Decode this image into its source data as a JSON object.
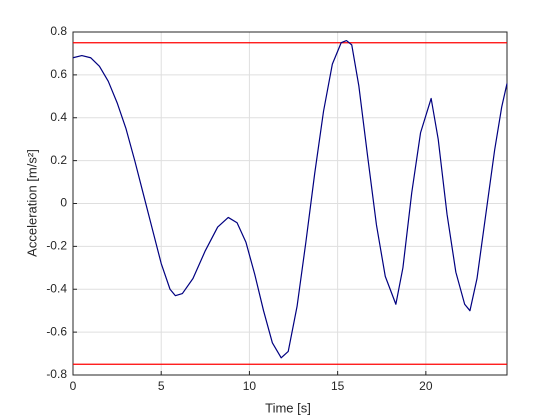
{
  "chart_data": {
    "type": "line",
    "xlabel": "Time [s]",
    "ylabel": "Acceleration [m/s²]",
    "x": [
      0,
      0.5,
      1,
      1.5,
      2,
      2.5,
      3,
      3.5,
      4,
      4.5,
      5,
      5.5,
      5.8,
      6.2,
      6.8,
      7.5,
      8.2,
      8.8,
      9.3,
      9.8,
      10.3,
      10.8,
      11.3,
      11.8,
      12.2,
      12.7,
      13.2,
      13.7,
      14.2,
      14.7,
      15.2,
      15.5,
      15.8,
      16.2,
      16.7,
      17.2,
      17.7,
      18.3,
      18.7,
      19.2,
      19.7,
      20.3,
      20.7,
      21.2,
      21.7,
      22.2,
      22.5,
      22.9,
      23.4,
      23.9,
      24.3,
      24.6
    ],
    "series": [
      {
        "color": "#000080",
        "values": [
          0.68,
          0.69,
          0.68,
          0.64,
          0.57,
          0.47,
          0.35,
          0.2,
          0.04,
          -0.12,
          -0.28,
          -0.4,
          -0.43,
          -0.42,
          -0.35,
          -0.22,
          -0.11,
          -0.065,
          -0.09,
          -0.18,
          -0.33,
          -0.5,
          -0.65,
          -0.72,
          -0.69,
          -0.48,
          -0.18,
          0.14,
          0.43,
          0.65,
          0.75,
          0.76,
          0.74,
          0.55,
          0.22,
          -0.1,
          -0.34,
          -0.47,
          -0.3,
          0.05,
          0.33,
          0.49,
          0.3,
          -0.05,
          -0.32,
          -0.47,
          -0.5,
          -0.35,
          -0.05,
          0.25,
          0.45,
          0.56
        ]
      }
    ],
    "hlines": {
      "color": "#ff0000",
      "values": [
        0.75,
        -0.75
      ]
    },
    "xlim": [
      0,
      24.6
    ],
    "ylim": [
      -0.8,
      0.8
    ],
    "xticks": [
      0,
      5,
      10,
      15,
      20
    ],
    "yticks": [
      -0.8,
      -0.6,
      -0.4,
      -0.2,
      0,
      0.2,
      0.4,
      0.6,
      0.8
    ],
    "grid": true
  }
}
